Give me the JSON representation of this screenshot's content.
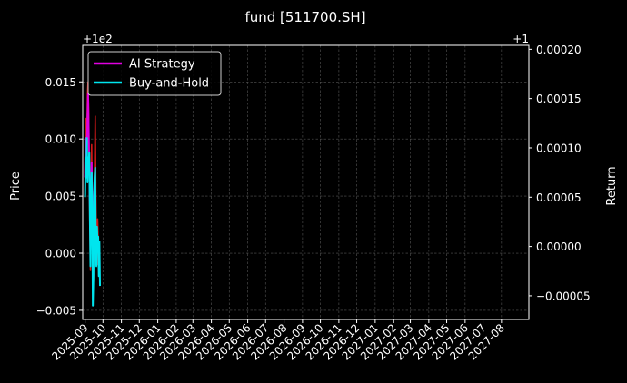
{
  "chart_data": {
    "type": "line",
    "title": "fund [511700.SH]",
    "xlabel": "",
    "ylabel_left": "Price",
    "ylabel_right": "Return",
    "offset_left": "+1e2",
    "offset_right": "+1",
    "x_tick_labels": [
      "2025-09",
      "2025-10",
      "2025-11",
      "2025-12",
      "2026-01",
      "2026-02",
      "2026-03",
      "2026-04",
      "2026-05",
      "2026-06",
      "2026-07",
      "2026-08",
      "2026-09",
      "2026-10",
      "2026-11",
      "2026-12",
      "2027-01",
      "2027-02",
      "2027-03",
      "2027-04",
      "2027-05",
      "2027-06",
      "2027-07",
      "2027-08"
    ],
    "x_range": [
      "2025-08-28",
      "2027-09-16"
    ],
    "ylim_left": [
      -0.0058,
      0.0182
    ],
    "yticks_left": [
      -0.005,
      0.0,
      0.005,
      0.01,
      0.015
    ],
    "ytick_labels_left": [
      "−0.005",
      "0.000",
      "0.005",
      "0.010",
      "0.015"
    ],
    "ylim_right": [
      -7.4e-05,
      0.000204
    ],
    "yticks_right": [
      -5e-05,
      0.0,
      5e-05,
      0.0001,
      0.00015,
      0.0002
    ],
    "ytick_labels_right": [
      "−0.00005",
      "0.00000",
      "0.00005",
      "0.00010",
      "0.00015",
      "0.00020"
    ],
    "grid": true,
    "legend_position": "upper-left",
    "legend": [
      {
        "name": "AI Strategy",
        "color": "#e000e0"
      },
      {
        "name": "Buy-and-Hold",
        "color": "#00e5ee"
      }
    ],
    "series": [
      {
        "name": "price",
        "axis": "left",
        "color": "#d01818",
        "x": [
          "2025-09-01",
          "2025-09-02",
          "2025-09-03",
          "2025-09-04",
          "2025-09-05",
          "2025-09-06",
          "2025-09-07",
          "2025-09-08",
          "2025-09-09",
          "2025-09-10",
          "2025-09-11",
          "2025-09-12",
          "2025-09-13",
          "2025-09-14",
          "2025-09-15",
          "2025-09-16",
          "2025-09-17",
          "2025-09-18",
          "2025-09-19",
          "2025-09-20",
          "2025-09-21",
          "2025-09-22",
          "2025-09-23",
          "2025-09-24"
        ],
        "y": [
          0.007,
          0.0118,
          0.0085,
          0.0102,
          0.014,
          0.015,
          0.012,
          0.0065,
          0.0022,
          -0.0015,
          0.006,
          0.0095,
          0.004,
          -0.0008,
          -0.0025,
          0.002,
          0.0075,
          0.012,
          0.0055,
          0.001,
          -0.001,
          0.003,
          0.001,
          -0.0015
        ]
      },
      {
        "name": "AI Strategy",
        "axis": "right",
        "color": "#e000e0",
        "x": [
          "2025-09-01",
          "2025-09-02",
          "2025-09-03",
          "2025-09-04",
          "2025-09-05",
          "2025-09-06",
          "2025-09-07",
          "2025-09-08",
          "2025-09-09",
          "2025-09-10",
          "2025-09-11",
          "2025-09-12",
          "2025-09-13",
          "2025-09-14",
          "2025-09-15",
          "2025-09-16"
        ],
        "y": [
          7e-05,
          0.00011,
          7.5e-05,
          9.5e-05,
          0.00013,
          0.000155,
          0.00012,
          8e-05,
          4.5e-05,
          1e-05,
          6e-05,
          8.5e-05,
          4e-05,
          5e-06,
          -1.5e-05,
          2e-05
        ]
      },
      {
        "name": "Buy-and-Hold",
        "axis": "right",
        "color": "#00e5ee",
        "x": [
          "2025-09-01",
          "2025-09-02",
          "2025-09-03",
          "2025-09-04",
          "2025-09-05",
          "2025-09-06",
          "2025-09-07",
          "2025-09-08",
          "2025-09-09",
          "2025-09-10",
          "2025-09-11",
          "2025-09-12",
          "2025-09-13",
          "2025-09-14",
          "2025-09-15",
          "2025-09-16",
          "2025-09-17",
          "2025-09-18",
          "2025-09-19",
          "2025-09-20",
          "2025-09-21",
          "2025-09-22",
          "2025-09-23",
          "2025-09-24",
          "2025-09-25",
          "2025-09-26"
        ],
        "y": [
          5e-05,
          9e-05,
          7e-05,
          0.00011,
          6.5e-05,
          9e-05,
          8.5e-05,
          9.5e-05,
          3e-05,
          -2e-05,
          6e-05,
          7.5e-05,
          3e-05,
          -6e-05,
          -3e-05,
          5e-05,
          7e-05,
          8e-05,
          -5e-06,
          -2e-05,
          2e-05,
          0.0,
          1e-05,
          -3e-05,
          5e-06,
          -4e-05
        ]
      }
    ]
  }
}
